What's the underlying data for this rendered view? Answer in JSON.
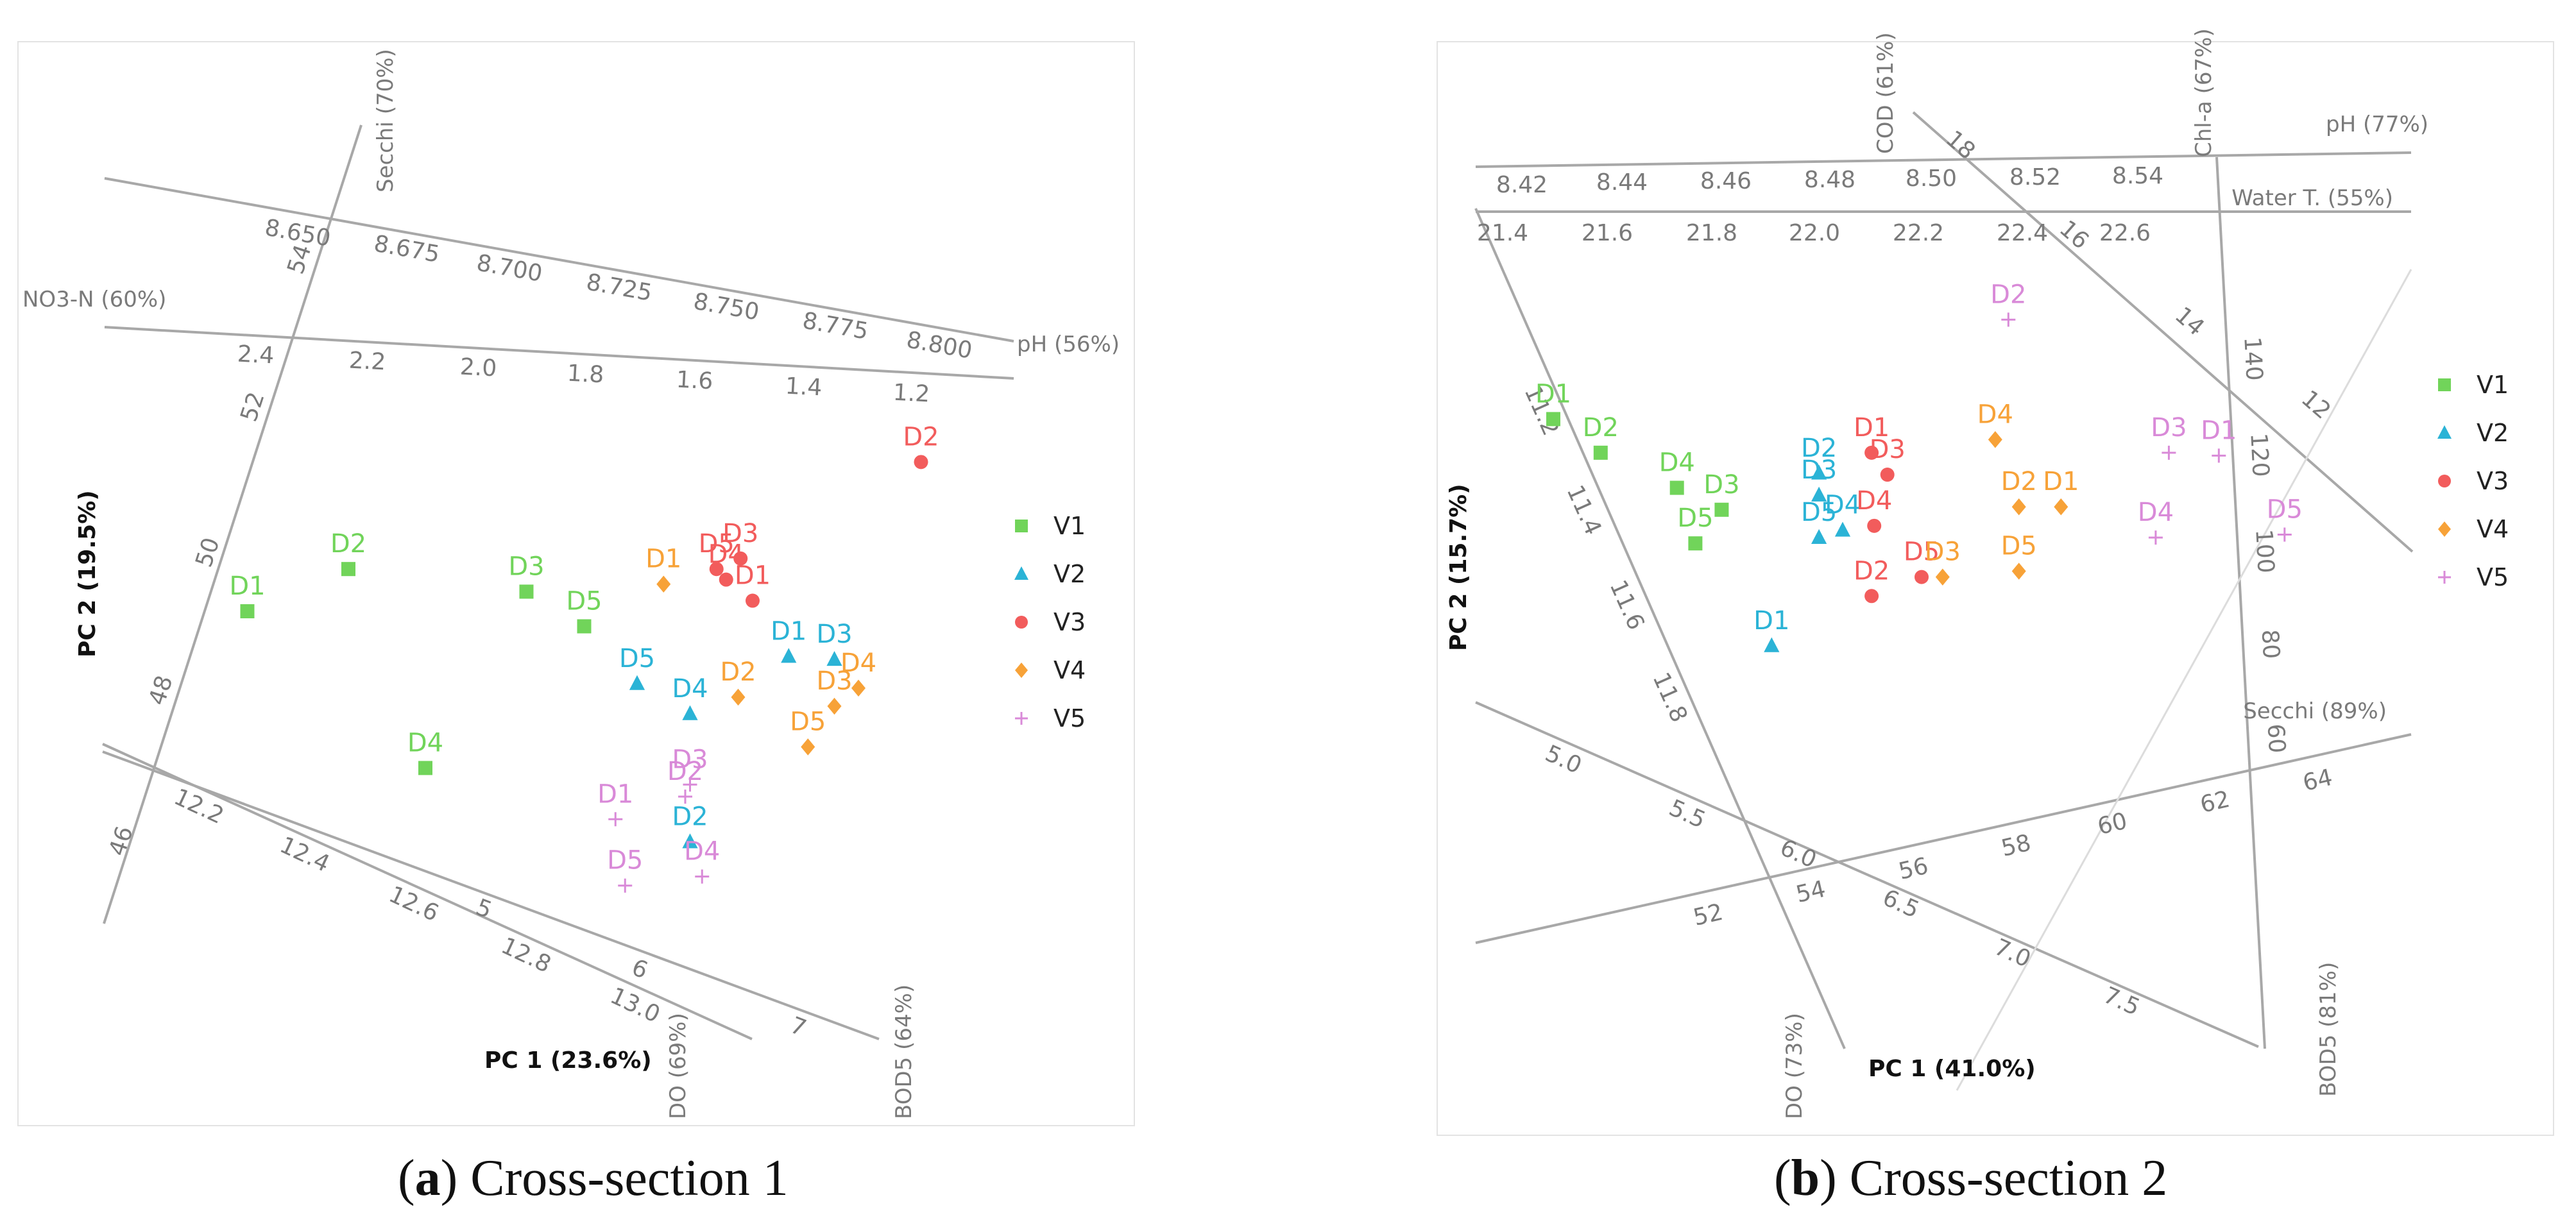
{
  "colors": {
    "V1": "#71d45a",
    "V2": "#2bb3d6",
    "V3": "#f25c5c",
    "V4": "#f7a238",
    "V5": "#d98ad8"
  },
  "legend": [
    {
      "label": "V1",
      "marker": "square"
    },
    {
      "label": "V2",
      "marker": "triangle"
    },
    {
      "label": "V3",
      "marker": "circle"
    },
    {
      "label": "V4",
      "marker": "diamond"
    },
    {
      "label": "V5",
      "marker": "plus"
    }
  ],
  "chart_data": [
    {
      "type": "scatter",
      "title": "Cross-section 1",
      "caption": {
        "letter": "a",
        "text": " Cross-section 1"
      },
      "xlabel": "PC 1 (23.6%)",
      "ylabel": "PC 2 (19.5%)",
      "axes": [
        {
          "name": "Secchi (70%)",
          "ticks": [
            "46",
            "48",
            "50",
            "52",
            "54"
          ]
        },
        {
          "name": "pH (56%)",
          "ticks": [
            "8.650",
            "8.675",
            "8.700",
            "8.725",
            "8.750",
            "8.775",
            "8.800"
          ]
        },
        {
          "name": "NO3-N (60%)",
          "ticks": [
            "2.4",
            "2.2",
            "2.0",
            "1.8",
            "1.6",
            "1.4",
            "1.2"
          ]
        },
        {
          "name": "DO (69%)",
          "ticks": [
            "12.2",
            "12.4",
            "12.6",
            "12.8",
            "13.0"
          ]
        },
        {
          "name": "BOD5 (64%)",
          "ticks": [
            "5",
            "6",
            "7"
          ]
        }
      ],
      "points": [
        {
          "series": "V1",
          "label": "D1",
          "x": -1.7,
          "y": 0.2
        },
        {
          "series": "V1",
          "label": "D2",
          "x": -1.28,
          "y": 0.48
        },
        {
          "series": "V1",
          "label": "D3",
          "x": -0.54,
          "y": 0.33
        },
        {
          "series": "V1",
          "label": "D5",
          "x": -0.3,
          "y": 0.1
        },
        {
          "series": "V1",
          "label": "D4",
          "x": -0.96,
          "y": -0.84
        },
        {
          "series": "V2",
          "label": "D5",
          "x": -0.08,
          "y": -0.28
        },
        {
          "series": "V2",
          "label": "D4",
          "x": 0.14,
          "y": -0.48
        },
        {
          "series": "V2",
          "label": "D1",
          "x": 0.55,
          "y": -0.1
        },
        {
          "series": "V2",
          "label": "D3",
          "x": 0.74,
          "y": -0.12
        },
        {
          "series": "V2",
          "label": "D2",
          "x": 0.14,
          "y": -1.33
        },
        {
          "series": "V3",
          "label": "D2",
          "x": 1.1,
          "y": 1.19
        },
        {
          "series": "V3",
          "label": "D3",
          "x": 0.35,
          "y": 0.55
        },
        {
          "series": "V3",
          "label": "D5",
          "x": 0.25,
          "y": 0.48
        },
        {
          "series": "V3",
          "label": "D4",
          "x": 0.29,
          "y": 0.41
        },
        {
          "series": "V3",
          "label": "D1",
          "x": 0.4,
          "y": 0.27
        },
        {
          "series": "V4",
          "label": "D1",
          "x": 0.03,
          "y": 0.38
        },
        {
          "series": "V4",
          "label": "D2",
          "x": 0.34,
          "y": -0.37
        },
        {
          "series": "V4",
          "label": "D3",
          "x": 0.74,
          "y": -0.43
        },
        {
          "series": "V4",
          "label": "D4",
          "x": 0.84,
          "y": -0.31
        },
        {
          "series": "V4",
          "label": "D5",
          "x": 0.63,
          "y": -0.7
        },
        {
          "series": "V5",
          "label": "D1",
          "x": -0.17,
          "y": -1.18
        },
        {
          "series": "V5",
          "label": "D2",
          "x": 0.12,
          "y": -1.03
        },
        {
          "series": "V5",
          "label": "D3",
          "x": 0.14,
          "y": -0.95
        },
        {
          "series": "V5",
          "label": "D4",
          "x": 0.19,
          "y": -1.56
        },
        {
          "series": "V5",
          "label": "D5",
          "x": -0.13,
          "y": -1.62
        }
      ]
    },
    {
      "type": "scatter",
      "title": "Cross-section 2",
      "caption": {
        "letter": "b",
        "text": " Cross-section 2"
      },
      "xlabel": "PC 1 (41.0%)",
      "ylabel": "PC 2 (15.7%)",
      "axes": [
        {
          "name": "pH (77%)",
          "ticks": [
            "8.42",
            "8.44",
            "8.46",
            "8.48",
            "8.50",
            "8.52",
            "8.54"
          ]
        },
        {
          "name": "Water T. (55%)",
          "ticks": [
            "21.4",
            "21.6",
            "21.8",
            "22.0",
            "22.2",
            "22.4",
            "22.6"
          ]
        },
        {
          "name": "COD (61%)",
          "ticks": [
            "18",
            "16",
            "14",
            "12"
          ]
        },
        {
          "name": "Chl-a (67%)",
          "ticks": [
            "140",
            "120",
            "100",
            "80",
            "60"
          ]
        },
        {
          "name": "Secchi (89%)",
          "ticks": [
            "52",
            "54",
            "56",
            "58",
            "60",
            "62",
            "64"
          ]
        },
        {
          "name": "DO (73%)",
          "ticks": [
            "11.2",
            "11.4",
            "11.6",
            "11.8"
          ]
        },
        {
          "name": "BOD5 (81%)",
          "ticks": [
            "5.0",
            "5.5",
            "6.0",
            "6.5",
            "7.0",
            "7.5"
          ]
        }
      ],
      "points": [
        {
          "series": "V1",
          "label": "D1",
          "x": -1.4,
          "y": 0.95
        },
        {
          "series": "V1",
          "label": "D2",
          "x": -1.22,
          "y": 0.72
        },
        {
          "series": "V1",
          "label": "D4",
          "x": -0.93,
          "y": 0.48
        },
        {
          "series": "V1",
          "label": "D3",
          "x": -0.76,
          "y": 0.33
        },
        {
          "series": "V1",
          "label": "D5",
          "x": -0.86,
          "y": 0.1
        },
        {
          "series": "V2",
          "label": "D2",
          "x": -0.39,
          "y": 0.58
        },
        {
          "series": "V2",
          "label": "D3",
          "x": -0.39,
          "y": 0.43
        },
        {
          "series": "V2",
          "label": "D4",
          "x": -0.3,
          "y": 0.19
        },
        {
          "series": "V2",
          "label": "D5",
          "x": -0.39,
          "y": 0.14
        },
        {
          "series": "V2",
          "label": "D1",
          "x": -0.57,
          "y": -0.6
        },
        {
          "series": "V3",
          "label": "D1",
          "x": -0.19,
          "y": 0.72
        },
        {
          "series": "V3",
          "label": "D3",
          "x": -0.13,
          "y": 0.57
        },
        {
          "series": "V3",
          "label": "D4",
          "x": -0.18,
          "y": 0.22
        },
        {
          "series": "V3",
          "label": "D5",
          "x": 0.0,
          "y": -0.13
        },
        {
          "series": "V3",
          "label": "D2",
          "x": -0.19,
          "y": -0.26
        },
        {
          "series": "V4",
          "label": "D4",
          "x": 0.28,
          "y": 0.81
        },
        {
          "series": "V4",
          "label": "D2",
          "x": 0.37,
          "y": 0.35
        },
        {
          "series": "V4",
          "label": "D1",
          "x": 0.53,
          "y": 0.35
        },
        {
          "series": "V4",
          "label": "D5",
          "x": 0.37,
          "y": -0.09
        },
        {
          "series": "V4",
          "label": "D3",
          "x": 0.08,
          "y": -0.13
        },
        {
          "series": "V5",
          "label": "D2",
          "x": 0.33,
          "y": 1.63
        },
        {
          "series": "V5",
          "label": "D3",
          "x": 0.94,
          "y": 0.72
        },
        {
          "series": "V5",
          "label": "D1",
          "x": 1.13,
          "y": 0.7
        },
        {
          "series": "V5",
          "label": "D4",
          "x": 0.89,
          "y": 0.14
        },
        {
          "series": "V5",
          "label": "D5",
          "x": 1.38,
          "y": 0.16
        }
      ]
    }
  ]
}
